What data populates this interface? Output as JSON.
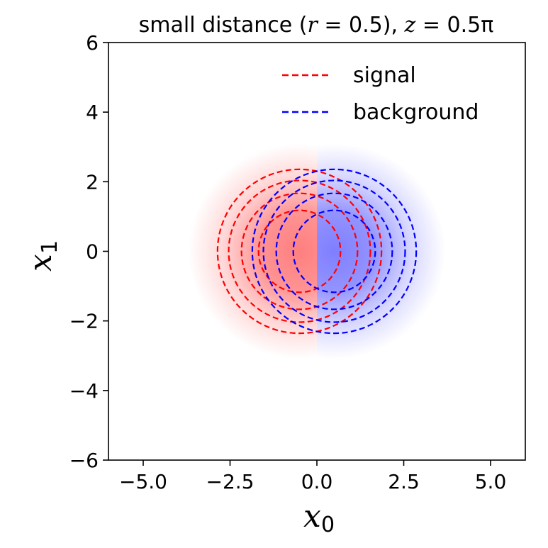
{
  "chart_data": {
    "type": "contour",
    "title": "small distance (r = 0.5), z = 0.5π",
    "title_parts": {
      "prefix": "small distance (",
      "r_var": "r",
      "r_eq": " = 0.5), ",
      "z_var": "z",
      "z_eq": " = 0.5π"
    },
    "xlabel": {
      "var": "x",
      "sub": "0"
    },
    "ylabel": {
      "var": "x",
      "sub": "1"
    },
    "xlim": [
      -6,
      6
    ],
    "ylim": [
      -6,
      6
    ],
    "xticks": [
      -5.0,
      -2.5,
      0.0,
      2.5,
      5.0
    ],
    "xtick_labels": [
      "−5.0",
      "−2.5",
      "0.0",
      "2.5",
      "5.0"
    ],
    "yticks": [
      -6,
      -4,
      -2,
      0,
      2,
      4,
      6
    ],
    "ytick_labels": [
      "−6",
      "−4",
      "−2",
      "0",
      "2",
      "4",
      "6"
    ],
    "grid": false,
    "legend_position": "top-right",
    "background": {
      "description": "diverging red/blue density, red for x0 < 0, blue for x0 > 0",
      "left_color": "#ff7f7f",
      "right_color": "#7f7fff",
      "spread": 2.0
    },
    "series": [
      {
        "name": "signal",
        "color": "#ff0000",
        "linestyle": "dashed",
        "center": [
          -0.5,
          0.0
        ],
        "radii": [
          1.18,
          1.67,
          2.04,
          2.36
        ]
      },
      {
        "name": "background",
        "color": "#0000ff",
        "linestyle": "dashed",
        "center": [
          0.5,
          0.0
        ],
        "radii": [
          1.18,
          1.67,
          2.04,
          2.36
        ]
      }
    ]
  }
}
